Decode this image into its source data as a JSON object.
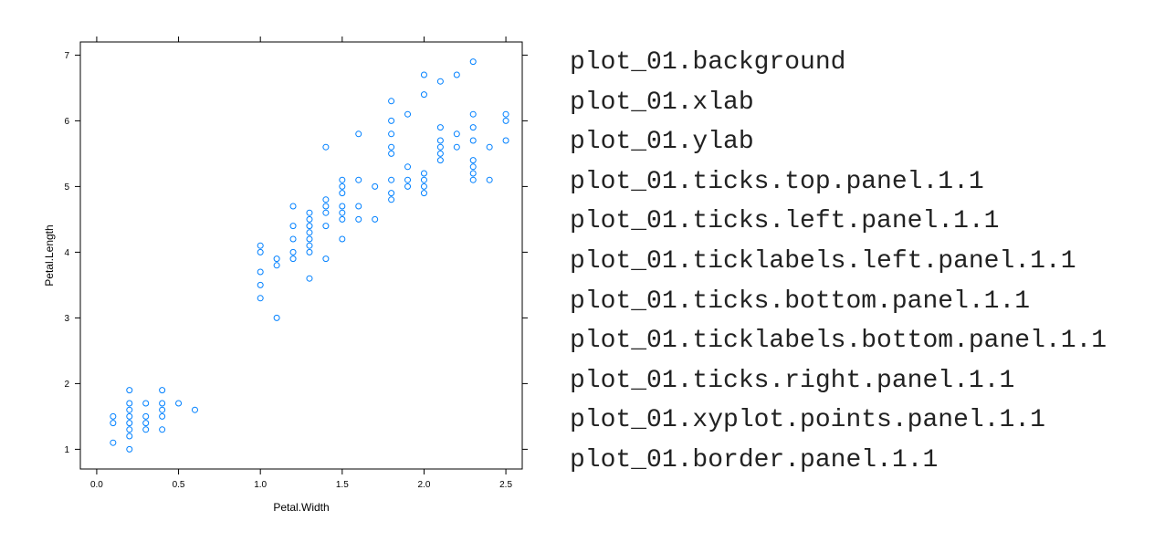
{
  "chart_data": {
    "type": "scatter",
    "xlabel": "Petal.Width",
    "ylabel": "Petal.Length",
    "xlim": [
      -0.1,
      2.6
    ],
    "ylim": [
      0.7,
      7.2
    ],
    "xticks": [
      0.0,
      0.5,
      1.0,
      1.5,
      2.0,
      2.5
    ],
    "xtick_labels": [
      "0.0",
      "0.5",
      "1.0",
      "1.5",
      "2.0",
      "2.5"
    ],
    "yticks": [
      1,
      2,
      3,
      4,
      5,
      6,
      7
    ],
    "ytick_labels": [
      "1",
      "2",
      "3",
      "4",
      "5",
      "6",
      "7"
    ],
    "point_color": "#0080ff",
    "points": [
      [
        0.1,
        1.4
      ],
      [
        0.1,
        1.5
      ],
      [
        0.1,
        1.1
      ],
      [
        0.2,
        1.9
      ],
      [
        0.2,
        1.7
      ],
      [
        0.2,
        1.6
      ],
      [
        0.2,
        1.5
      ],
      [
        0.2,
        1.4
      ],
      [
        0.2,
        1.3
      ],
      [
        0.2,
        1.2
      ],
      [
        0.2,
        1.0
      ],
      [
        0.3,
        1.7
      ],
      [
        0.3,
        1.5
      ],
      [
        0.3,
        1.4
      ],
      [
        0.3,
        1.3
      ],
      [
        0.4,
        1.9
      ],
      [
        0.4,
        1.7
      ],
      [
        0.4,
        1.5
      ],
      [
        0.4,
        1.6
      ],
      [
        0.4,
        1.3
      ],
      [
        0.5,
        1.7
      ],
      [
        0.6,
        1.6
      ],
      [
        1.0,
        4.1
      ],
      [
        1.0,
        4.0
      ],
      [
        1.0,
        3.7
      ],
      [
        1.0,
        3.5
      ],
      [
        1.0,
        3.3
      ],
      [
        1.1,
        3.9
      ],
      [
        1.1,
        3.8
      ],
      [
        1.1,
        3.0
      ],
      [
        1.2,
        4.7
      ],
      [
        1.2,
        4.4
      ],
      [
        1.2,
        4.2
      ],
      [
        1.2,
        4.0
      ],
      [
        1.2,
        3.9
      ],
      [
        1.3,
        4.6
      ],
      [
        1.3,
        4.5
      ],
      [
        1.3,
        4.4
      ],
      [
        1.3,
        4.3
      ],
      [
        1.3,
        4.2
      ],
      [
        1.3,
        4.1
      ],
      [
        1.3,
        4.0
      ],
      [
        1.3,
        3.6
      ],
      [
        1.4,
        5.6
      ],
      [
        1.4,
        4.8
      ],
      [
        1.4,
        4.7
      ],
      [
        1.4,
        4.6
      ],
      [
        1.4,
        4.4
      ],
      [
        1.4,
        3.9
      ],
      [
        1.5,
        5.1
      ],
      [
        1.5,
        5.0
      ],
      [
        1.5,
        4.9
      ],
      [
        1.5,
        4.7
      ],
      [
        1.5,
        4.6
      ],
      [
        1.5,
        4.5
      ],
      [
        1.5,
        4.2
      ],
      [
        1.6,
        5.8
      ],
      [
        1.6,
        5.1
      ],
      [
        1.6,
        4.7
      ],
      [
        1.6,
        4.5
      ],
      [
        1.7,
        5.0
      ],
      [
        1.7,
        4.5
      ],
      [
        1.8,
        6.3
      ],
      [
        1.8,
        6.0
      ],
      [
        1.8,
        5.8
      ],
      [
        1.8,
        5.6
      ],
      [
        1.8,
        5.5
      ],
      [
        1.8,
        5.1
      ],
      [
        1.8,
        4.9
      ],
      [
        1.8,
        4.8
      ],
      [
        1.9,
        6.1
      ],
      [
        1.9,
        5.3
      ],
      [
        1.9,
        5.1
      ],
      [
        1.9,
        5.0
      ],
      [
        2.0,
        6.7
      ],
      [
        2.0,
        6.4
      ],
      [
        2.0,
        5.2
      ],
      [
        2.0,
        5.1
      ],
      [
        2.0,
        5.0
      ],
      [
        2.0,
        4.9
      ],
      [
        2.1,
        6.6
      ],
      [
        2.1,
        5.9
      ],
      [
        2.1,
        5.7
      ],
      [
        2.1,
        5.6
      ],
      [
        2.1,
        5.5
      ],
      [
        2.1,
        5.4
      ],
      [
        2.2,
        6.7
      ],
      [
        2.2,
        5.8
      ],
      [
        2.2,
        5.6
      ],
      [
        2.3,
        6.9
      ],
      [
        2.3,
        6.1
      ],
      [
        2.3,
        5.9
      ],
      [
        2.3,
        5.7
      ],
      [
        2.3,
        5.4
      ],
      [
        2.3,
        5.3
      ],
      [
        2.3,
        5.2
      ],
      [
        2.3,
        5.1
      ],
      [
        2.4,
        5.6
      ],
      [
        2.4,
        5.1
      ],
      [
        2.5,
        6.1
      ],
      [
        2.5,
        6.0
      ],
      [
        2.5,
        5.7
      ]
    ]
  },
  "grob_names": [
    "plot_01.background",
    "plot_01.xlab",
    "plot_01.ylab",
    "plot_01.ticks.top.panel.1.1",
    "plot_01.ticks.left.panel.1.1",
    "plot_01.ticklabels.left.panel.1.1",
    "plot_01.ticks.bottom.panel.1.1",
    "plot_01.ticklabels.bottom.panel.1.1",
    "plot_01.ticks.right.panel.1.1",
    "plot_01.xyplot.points.panel.1.1",
    "plot_01.border.panel.1.1"
  ]
}
